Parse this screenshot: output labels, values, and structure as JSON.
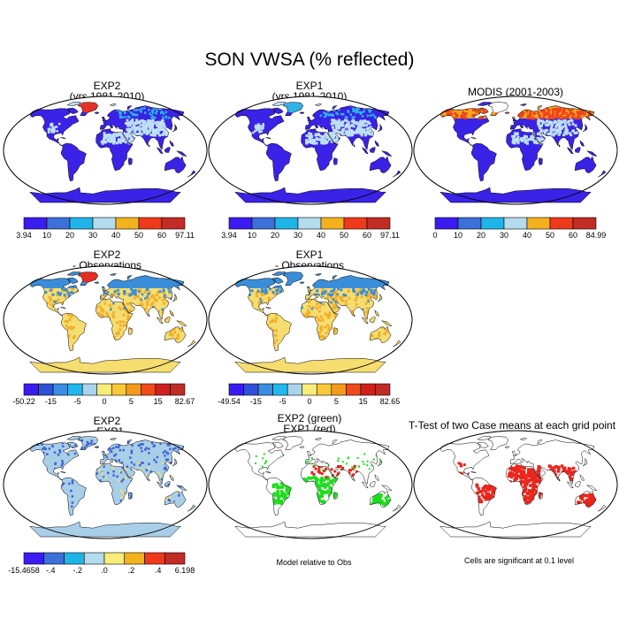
{
  "title": "SON VWSA (% reflected)",
  "panels": [
    {
      "line1": "EXP2",
      "line2": "(yrs 1981-2010)"
    },
    {
      "line1": "EXP1",
      "line2": "(yrs 1981-2010)"
    },
    {
      "line1": "MODIS (2001-2003)",
      "line2": ""
    },
    {
      "line1": "EXP2",
      "line2": "- Observations"
    },
    {
      "line1": "EXP1",
      "line2": "- Observations"
    },
    {
      "line1": "EXP2",
      "line2": "- EXP1"
    },
    {
      "line1": "EXP2 (green)",
      "line2": "EXP1 (red)"
    },
    {
      "line1": "T-Test of two Case means at each grid point",
      "line2": ""
    }
  ],
  "colorbars": [
    {
      "labels": [
        "3.94",
        "10",
        "20",
        "30",
        "40",
        "50",
        "60",
        "97.11"
      ],
      "colors": [
        "#3b1cf0",
        "#3c6fd9",
        "#1fb4e8",
        "#b4dbee",
        "#f3b21d",
        "#f0391a",
        "#c22c24"
      ]
    },
    {
      "labels": [
        "3.94",
        "10",
        "20",
        "30",
        "40",
        "50",
        "60",
        "97.11"
      ],
      "colors": [
        "#3b1cf0",
        "#3c6fd9",
        "#1fb4e8",
        "#b4dbee",
        "#f3b21d",
        "#f0391a",
        "#c22c24"
      ]
    },
    {
      "labels": [
        "0",
        "10",
        "20",
        "30",
        "40",
        "50",
        "60",
        "84.99"
      ],
      "colors": [
        "#3b1cf0",
        "#3c6fd9",
        "#1fb4e8",
        "#b4dbee",
        "#f3b21d",
        "#f0391a",
        "#c22c24"
      ]
    },
    {
      "labels": [
        "-50.22",
        "-15",
        "-5",
        "0",
        "5",
        "15",
        "82.67"
      ],
      "colors": [
        "#3b1cf0",
        "#3050d8",
        "#3b8de0",
        "#21b8ee",
        "#a9d4ec",
        "#f8ec7a",
        "#f8c93a",
        "#f39c1c",
        "#f04a1a",
        "#d0201c",
        "#c02c24"
      ]
    },
    {
      "labels": [
        "-49.54",
        "-15",
        "-5",
        "0",
        "5",
        "15",
        "82.65"
      ],
      "colors": [
        "#3b1cf0",
        "#3050d8",
        "#3b8de0",
        "#21b8ee",
        "#a9d4ec",
        "#f8ec7a",
        "#f8c93a",
        "#f39c1c",
        "#f04a1a",
        "#d0201c",
        "#c02c24"
      ]
    },
    {
      "labels": [
        "-15.4658",
        "-.4",
        "-.2",
        ".0",
        ".2",
        ".4",
        "6.198"
      ],
      "colors": [
        "#3b1cf0",
        "#3c6fd9",
        "#1fb4e8",
        "#b4dbee",
        "#f8ec7a",
        "#f3b21d",
        "#f0391a",
        "#c22c24"
      ]
    }
  ],
  "notes": [
    "Model relative to Obs",
    "Cells are significant at 0.1 level"
  ],
  "map_colors": {
    "ocean": "#ffffff",
    "coast": "#000000",
    "p1_land": "#3a22e6",
    "p1_snow": "#bde0f4",
    "p1_mid": "#2fb3e4",
    "p1_hot": "#e4322a",
    "p3_land": "#3a22e6",
    "p3_hot": "#f0421c",
    "p3_orange": "#f3a91c",
    "diff_land": "#f6dd70",
    "diff_orange": "#f3ae2a",
    "diff_blue": "#3a8ed9",
    "diff_red": "#e62d22",
    "ab_land": "#a9cfe8",
    "ab_blue": "#3e64d6",
    "sig_green": "#1edc1e",
    "sig_red": "#e8261c"
  }
}
